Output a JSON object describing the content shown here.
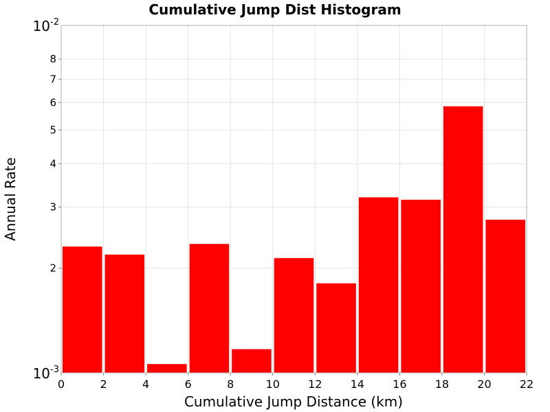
{
  "chart_data": {
    "type": "bar",
    "title": "Cumulative Jump Dist Histogram",
    "xlabel": "Cumulative Jump Distance (km)",
    "ylabel": "Annual Rate",
    "x_scale": "linear",
    "y_scale": "log",
    "xlim": [
      0,
      22
    ],
    "ylim": [
      0.001,
      0.01
    ],
    "x_ticks": [
      "0",
      "2",
      "4",
      "6",
      "8",
      "10",
      "12",
      "14",
      "16",
      "18",
      "20",
      "22"
    ],
    "y_major_ticks": [
      {
        "value": 0.001,
        "base": "10",
        "exp": "-3"
      },
      {
        "value": 0.01,
        "base": "10",
        "exp": "-2"
      }
    ],
    "y_minor_ticks": [
      {
        "value": 0.002,
        "label": "2"
      },
      {
        "value": 0.003,
        "label": "3"
      },
      {
        "value": 0.004,
        "label": "4"
      },
      {
        "value": 0.005,
        "label": "5"
      },
      {
        "value": 0.006,
        "label": "6"
      },
      {
        "value": 0.007,
        "label": "7"
      },
      {
        "value": 0.008,
        "label": "8"
      }
    ],
    "bin_width": 2,
    "bins": [
      {
        "center": 1,
        "value": 0.00231
      },
      {
        "center": 3,
        "value": 0.00219
      },
      {
        "center": 5,
        "value": 0.00106
      },
      {
        "center": 7,
        "value": 0.00235
      },
      {
        "center": 9,
        "value": 0.00117
      },
      {
        "center": 11,
        "value": 0.00214
      },
      {
        "center": 13,
        "value": 0.00181
      },
      {
        "center": 15,
        "value": 0.0032
      },
      {
        "center": 17,
        "value": 0.00315
      },
      {
        "center": 19,
        "value": 0.00585
      },
      {
        "center": 21,
        "value": 0.00276
      }
    ],
    "bar_color": "#ff0000",
    "grid": true
  }
}
